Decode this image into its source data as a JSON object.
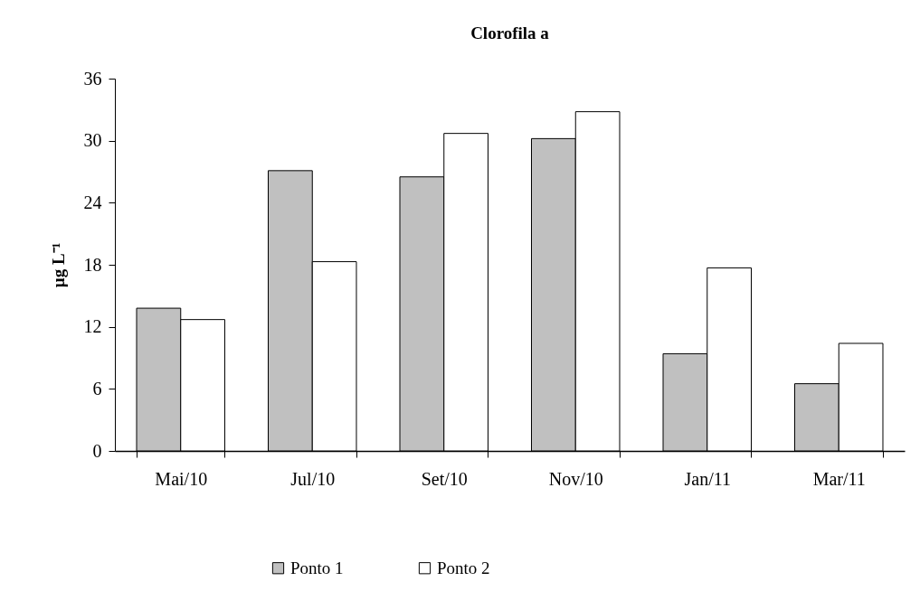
{
  "chart_data": {
    "type": "bar",
    "title": "Clorofila a",
    "ylabel": "µg L⁻¹",
    "categories": [
      "Mai/10",
      "Jul/10",
      "Set/10",
      "Nov/10",
      "Jan/11",
      "Mar/11"
    ],
    "series": [
      {
        "name": "Ponto 1",
        "color": "#c0c0c0",
        "values": [
          13.8,
          27.1,
          26.5,
          30.2,
          9.4,
          6.5
        ]
      },
      {
        "name": "Ponto 2",
        "color": "#ffffff",
        "values": [
          12.7,
          18.3,
          30.7,
          32.8,
          17.7,
          10.4
        ]
      }
    ],
    "ylim": [
      0,
      36
    ],
    "yticks": [
      0,
      6,
      12,
      18,
      24,
      30,
      36
    ],
    "grid": false,
    "legend": "bottom"
  }
}
